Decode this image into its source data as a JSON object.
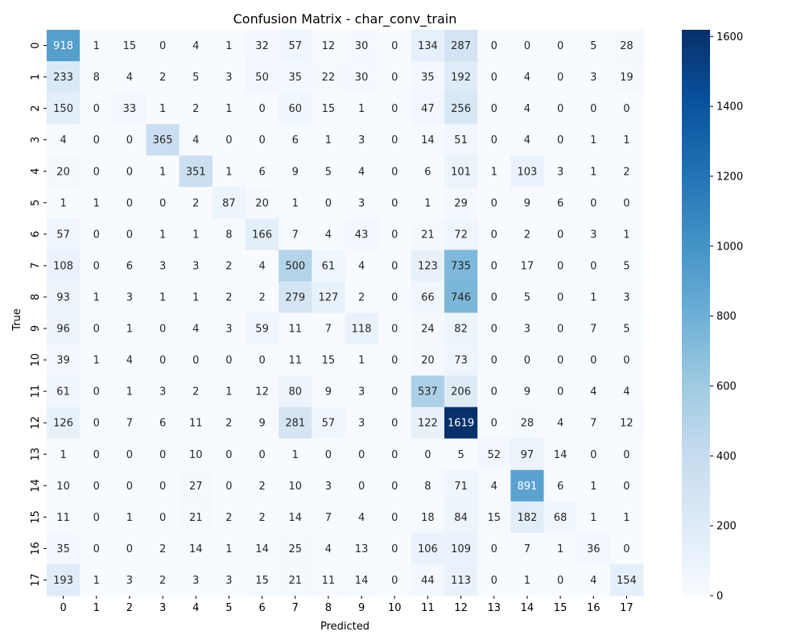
{
  "chart_data": {
    "type": "heatmap",
    "title": "Confusion Matrix - char_conv_train",
    "xlabel": "Predicted",
    "ylabel": "True",
    "x_categories": [
      "0",
      "1",
      "2",
      "3",
      "4",
      "5",
      "6",
      "7",
      "8",
      "9",
      "10",
      "11",
      "12",
      "13",
      "14",
      "15",
      "16",
      "17"
    ],
    "y_categories": [
      "0",
      "1",
      "2",
      "3",
      "4",
      "5",
      "6",
      "7",
      "8",
      "9",
      "10",
      "11",
      "12",
      "13",
      "14",
      "15",
      "16",
      "17"
    ],
    "values": [
      [
        918,
        1,
        15,
        0,
        4,
        1,
        32,
        57,
        12,
        30,
        0,
        134,
        287,
        0,
        0,
        0,
        5,
        28
      ],
      [
        233,
        8,
        4,
        2,
        5,
        3,
        50,
        35,
        22,
        30,
        0,
        35,
        192,
        0,
        4,
        0,
        3,
        19
      ],
      [
        150,
        0,
        33,
        1,
        2,
        1,
        0,
        60,
        15,
        1,
        0,
        47,
        256,
        0,
        4,
        0,
        0,
        0
      ],
      [
        4,
        0,
        0,
        365,
        4,
        0,
        0,
        6,
        1,
        3,
        0,
        14,
        51,
        0,
        4,
        0,
        1,
        1
      ],
      [
        20,
        0,
        0,
        1,
        351,
        1,
        6,
        9,
        5,
        4,
        0,
        6,
        101,
        1,
        103,
        3,
        1,
        2
      ],
      [
        1,
        1,
        0,
        0,
        2,
        87,
        20,
        1,
        0,
        3,
        0,
        1,
        29,
        0,
        9,
        6,
        0,
        0
      ],
      [
        57,
        0,
        0,
        1,
        1,
        8,
        166,
        7,
        4,
        43,
        0,
        21,
        72,
        0,
        2,
        0,
        3,
        1
      ],
      [
        108,
        0,
        6,
        3,
        3,
        2,
        4,
        500,
        61,
        4,
        0,
        123,
        735,
        0,
        17,
        0,
        0,
        5
      ],
      [
        93,
        1,
        3,
        1,
        1,
        2,
        2,
        279,
        127,
        2,
        0,
        66,
        746,
        0,
        5,
        0,
        1,
        3
      ],
      [
        96,
        0,
        1,
        0,
        4,
        3,
        59,
        11,
        7,
        118,
        0,
        24,
        82,
        0,
        3,
        0,
        7,
        5
      ],
      [
        39,
        1,
        4,
        0,
        0,
        0,
        0,
        11,
        15,
        1,
        0,
        20,
        73,
        0,
        0,
        0,
        0,
        0
      ],
      [
        61,
        0,
        1,
        3,
        2,
        1,
        12,
        80,
        9,
        3,
        0,
        537,
        206,
        0,
        9,
        0,
        4,
        4
      ],
      [
        126,
        0,
        7,
        6,
        11,
        2,
        9,
        281,
        57,
        3,
        0,
        122,
        1619,
        0,
        28,
        4,
        7,
        12
      ],
      [
        1,
        0,
        0,
        0,
        10,
        0,
        0,
        1,
        0,
        0,
        0,
        0,
        5,
        52,
        97,
        14,
        0,
        0
      ],
      [
        10,
        0,
        0,
        0,
        27,
        0,
        2,
        10,
        3,
        0,
        0,
        8,
        71,
        4,
        891,
        6,
        1,
        0
      ],
      [
        11,
        0,
        1,
        0,
        21,
        2,
        2,
        14,
        7,
        4,
        0,
        18,
        84,
        15,
        182,
        68,
        1,
        1
      ],
      [
        35,
        0,
        0,
        2,
        14,
        1,
        14,
        25,
        4,
        13,
        0,
        106,
        109,
        0,
        7,
        1,
        36,
        0
      ],
      [
        193,
        1,
        3,
        2,
        3,
        3,
        15,
        21,
        11,
        14,
        0,
        44,
        113,
        0,
        1,
        0,
        4,
        154
      ]
    ],
    "colorbar": {
      "min": 0,
      "max": 1619,
      "ticks": [
        0,
        200,
        400,
        600,
        800,
        1000,
        1200,
        1400,
        1600
      ],
      "colormap": "Blues"
    }
  }
}
